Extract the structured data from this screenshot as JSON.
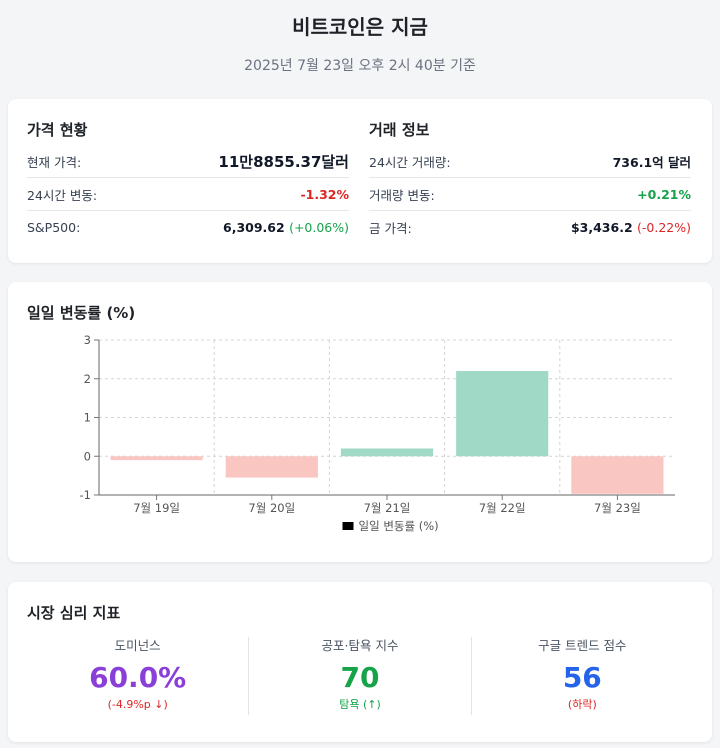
{
  "header": {
    "title": "비트코인은 지금",
    "subtitle": "2025년 7월 23일 오후 2시 40분 기준"
  },
  "price": {
    "title": "가격 현황",
    "rows": [
      {
        "label": "현재 가격:",
        "value": "11만8855.37달러"
      },
      {
        "label": "24시간 변동:",
        "value": "-1.32%"
      },
      {
        "label": "S&P500:",
        "value": "6,309.62",
        "change": "(+0.06%)"
      }
    ]
  },
  "trade": {
    "title": "거래 정보",
    "rows": [
      {
        "label": "24시간 거래량:",
        "value": "736.1억 달러"
      },
      {
        "label": "거래량 변동:",
        "value": "+0.21%"
      },
      {
        "label": "금 가격:",
        "value": "$3,436.2",
        "change": "(-0.22%)"
      }
    ]
  },
  "chart_section": {
    "title": "일일 변동률 (%)"
  },
  "chart_data": {
    "type": "bar",
    "categories": [
      "7월 19일",
      "7월 20일",
      "7월 21일",
      "7월 22일",
      "7월 23일"
    ],
    "series": [
      {
        "name": "일일 변동률 (%)",
        "values": [
          -0.1,
          -0.55,
          0.2,
          2.2,
          -0.97
        ]
      }
    ],
    "ylim": [
      -1,
      3
    ],
    "yticks": [
      -1,
      0,
      1,
      2,
      3
    ],
    "grid": true,
    "legend": "bottom",
    "colors": {
      "positive": "#a0d9c5",
      "negative": "#f9c6c2",
      "legend_swatch": "#000000"
    }
  },
  "sentiment": {
    "title": "시장 심리 지표",
    "items": [
      {
        "label": "도미넌스",
        "value": "60.0%",
        "note": "(-4.9%p ↓)",
        "color": "#8b3fd9",
        "note_color": "#dc2626"
      },
      {
        "label": "공포·탐욕 지수",
        "value": "70",
        "note": "탐욕 (↑)",
        "color": "#16a34a",
        "note_color": "#16a34a"
      },
      {
        "label": "구글 트렌드 점수",
        "value": "56",
        "note": "(하락)",
        "color": "#2563eb",
        "note_color": "#dc2626"
      }
    ]
  }
}
